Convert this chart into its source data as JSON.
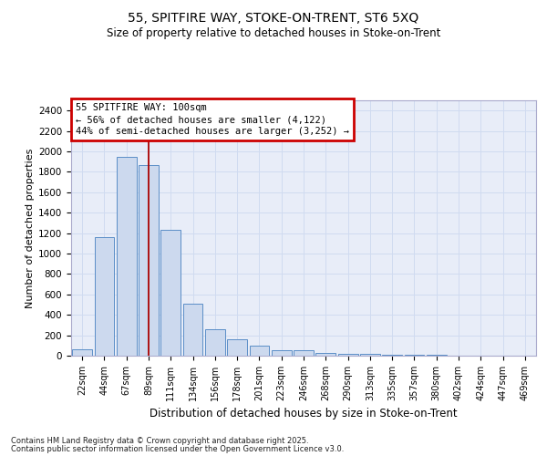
{
  "title_line1": "55, SPITFIRE WAY, STOKE-ON-TRENT, ST6 5XQ",
  "title_line2": "Size of property relative to detached houses in Stoke-on-Trent",
  "xlabel": "Distribution of detached houses by size in Stoke-on-Trent",
  "ylabel": "Number of detached properties",
  "categories": [
    "22sqm",
    "44sqm",
    "67sqm",
    "89sqm",
    "111sqm",
    "134sqm",
    "156sqm",
    "178sqm",
    "201sqm",
    "223sqm",
    "246sqm",
    "268sqm",
    "290sqm",
    "313sqm",
    "335sqm",
    "357sqm",
    "380sqm",
    "402sqm",
    "424sqm",
    "447sqm",
    "469sqm"
  ],
  "values": [
    60,
    1160,
    1950,
    1870,
    1230,
    510,
    260,
    160,
    100,
    55,
    50,
    30,
    20,
    20,
    5,
    5,
    5,
    3,
    2,
    2,
    2
  ],
  "bar_color": "#ccd9ee",
  "bar_edge_color": "#5b8ec7",
  "grid_color": "#d0dbf0",
  "background_color": "#e8edf8",
  "vline_x": 3,
  "vline_color": "#aa0000",
  "annotation_text": "55 SPITFIRE WAY: 100sqm\n← 56% of detached houses are smaller (4,122)\n44% of semi-detached houses are larger (3,252) →",
  "annotation_box_facecolor": "#ffffff",
  "annotation_box_edgecolor": "#cc0000",
  "footer_line1": "Contains HM Land Registry data © Crown copyright and database right 2025.",
  "footer_line2": "Contains public sector information licensed under the Open Government Licence v3.0.",
  "ylim_max": 2500,
  "yticks": [
    0,
    200,
    400,
    600,
    800,
    1000,
    1200,
    1400,
    1600,
    1800,
    2000,
    2200,
    2400
  ]
}
